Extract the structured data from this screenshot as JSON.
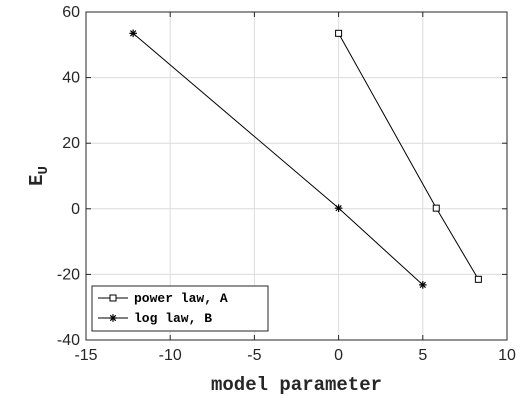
{
  "chart_data": {
    "type": "line",
    "xlabel": "model parameter",
    "ylabel": {
      "main": "E",
      "subscript": "U"
    },
    "xlim": [
      -15,
      10
    ],
    "ylim": [
      -40,
      60
    ],
    "x_ticks": [
      -15,
      -10,
      -5,
      0,
      5,
      10
    ],
    "y_ticks": [
      -40,
      -20,
      0,
      20,
      40,
      60
    ],
    "x_tick_labels": [
      "-15",
      "-10",
      "-5",
      "0",
      "5",
      "10"
    ],
    "y_tick_labels": [
      "-40",
      "-20",
      "0",
      "20",
      "40",
      "60"
    ],
    "grid": true,
    "legend_position": "bottom-left",
    "series": [
      {
        "name": "power law, A",
        "marker": "square",
        "x": [
          0,
          5.8,
          8.3
        ],
        "y": [
          53.5,
          0.2,
          -21.5
        ]
      },
      {
        "name": "log law, B",
        "marker": "asterisk",
        "x": [
          -12.2,
          0,
          5
        ],
        "y": [
          53.5,
          0.2,
          -23.2
        ]
      }
    ],
    "colors": {
      "line": "#000000",
      "grid": "#dcdcdc",
      "axis": "#262626"
    }
  }
}
